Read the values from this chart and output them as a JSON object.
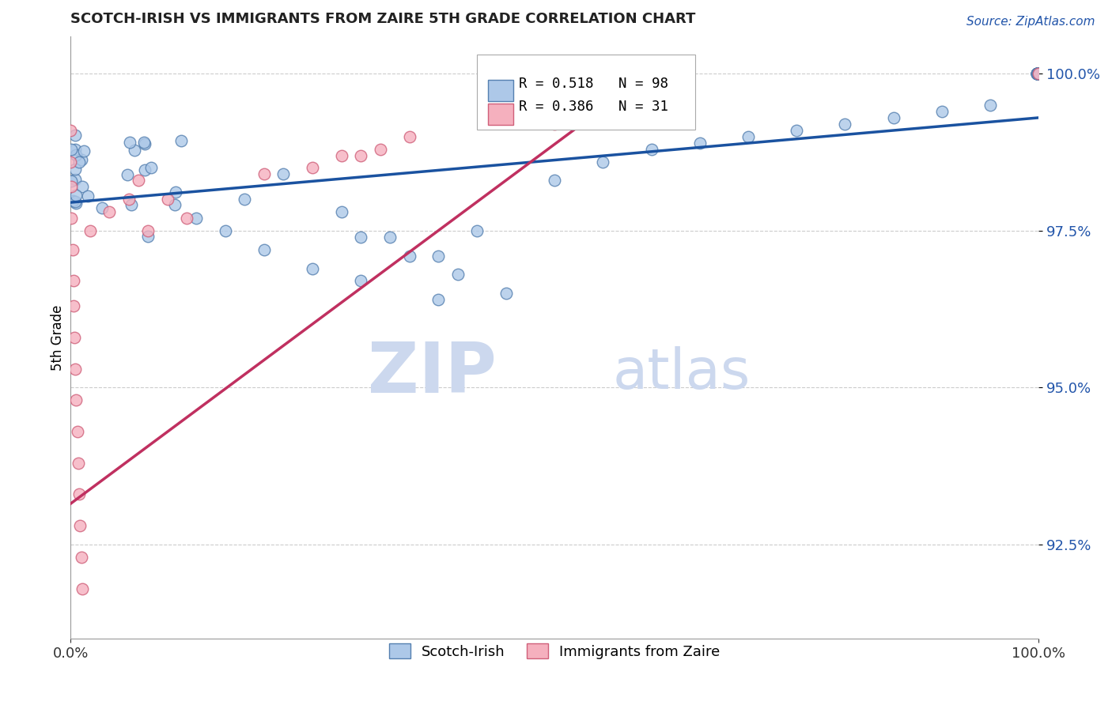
{
  "title": "SCOTCH-IRISH VS IMMIGRANTS FROM ZAIRE 5TH GRADE CORRELATION CHART",
  "source_text": "Source: ZipAtlas.com",
  "ylabel": "5th Grade",
  "xmin": 0.0,
  "xmax": 1.0,
  "ymin": 0.91,
  "ymax": 1.006,
  "yticks": [
    0.925,
    0.95,
    0.975,
    1.0
  ],
  "ytick_labels": [
    "92.5%",
    "95.0%",
    "97.5%",
    "100.0%"
  ],
  "blue_color": "#adc8e8",
  "blue_edge": "#5580b0",
  "pink_color": "#f5b0be",
  "pink_edge": "#d0607a",
  "blue_line_color": "#1a52a0",
  "pink_line_color": "#c03060",
  "legend_R_blue": "R = 0.518",
  "legend_N_blue": "N = 98",
  "legend_R_pink": "R = 0.386",
  "legend_N_pink": "N = 31",
  "legend_label_blue": "Scotch-Irish",
  "legend_label_pink": "Immigrants from Zaire",
  "blue_trend_x0": 0.0,
  "blue_trend_x1": 1.0,
  "blue_trend_y0": 0.9795,
  "blue_trend_y1": 0.993,
  "pink_trend_x0": 0.0,
  "pink_trend_x1": 0.55,
  "pink_trend_y0": 0.9315,
  "pink_trend_y1": 0.9945,
  "marker_size": 110,
  "bg_color": "#ffffff",
  "grid_color": "#cccccc",
  "wm_zip": "ZIP",
  "wm_atlas": "atlas",
  "wm_color": "#ccd8ee"
}
